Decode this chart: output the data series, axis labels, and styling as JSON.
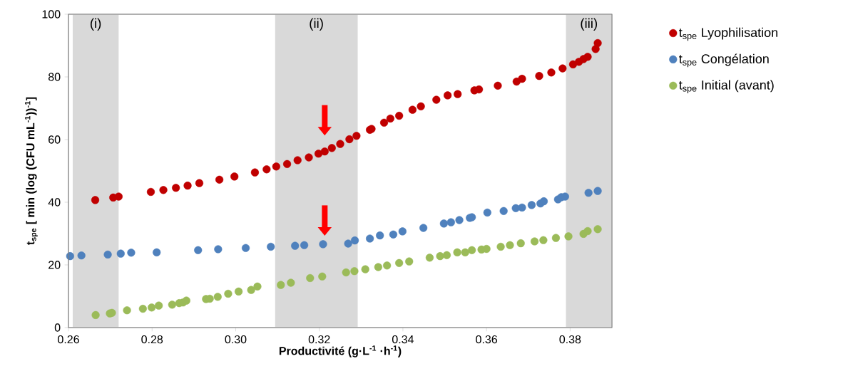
{
  "chart_data": {
    "type": "scatter",
    "xlabel": "Productivité (g·L$^{-1}$ ·h$^{-1}$)",
    "ylabel": "t$_{spe}$ [ min (log (CFU mL$^{-1}$))$^{-1}$]",
    "xlim": [
      0.26,
      0.39
    ],
    "ylim": [
      0,
      100
    ],
    "xticks": [
      {
        "value": 0.26,
        "label": "0.26"
      },
      {
        "value": 0.28,
        "label": "0.28"
      },
      {
        "value": 0.3,
        "label": "0.30"
      },
      {
        "value": 0.32,
        "label": "0.32"
      },
      {
        "value": 0.34,
        "label": "0.34"
      },
      {
        "value": 0.36,
        "label": "0.36"
      },
      {
        "value": 0.38,
        "label": "0.38"
      }
    ],
    "yticks": [
      0,
      20,
      40,
      60,
      80,
      100
    ],
    "grid": false,
    "legend": "right",
    "bands": [
      {
        "axis": "x",
        "from": 0.261,
        "to": 0.272,
        "label": "(i)",
        "color": "#d9d9d9"
      },
      {
        "axis": "x",
        "from": 0.3094,
        "to": 0.3292,
        "label": "(ii)",
        "color": "#d9d9d9"
      },
      {
        "axis": "x",
        "from": 0.379,
        "to": 0.39,
        "label": "(iii)",
        "color": "#d9d9d9"
      }
    ],
    "series": [
      {
        "name": "t$_{spe}$ Lyophilisation",
        "color": "#c00000",
        "x": [
          0.2664,
          0.2707,
          0.272,
          0.2797,
          0.2827,
          0.2857,
          0.2885,
          0.2913,
          0.2961,
          0.2997,
          0.3046,
          0.3074,
          0.3097,
          0.3123,
          0.3148,
          0.3175,
          0.3198,
          0.3213,
          0.323,
          0.325,
          0.3272,
          0.3289,
          0.3321,
          0.3325,
          0.3355,
          0.337,
          0.3391,
          0.3423,
          0.3443,
          0.348,
          0.3507,
          0.3531,
          0.3571,
          0.3582,
          0.3627,
          0.3672,
          0.3685,
          0.3726,
          0.3755,
          0.3782,
          0.3807,
          0.3821,
          0.3832,
          0.3842,
          0.3861,
          0.3866
        ],
        "values": [
          40.7,
          41.5,
          41.8,
          43.3,
          43.9,
          44.6,
          45.3,
          46.1,
          47.2,
          48.2,
          49.5,
          50.5,
          51.4,
          52.2,
          53.4,
          54.3,
          55.5,
          56.2,
          57.3,
          58.6,
          60.1,
          61.2,
          63.1,
          63.4,
          65.4,
          66.7,
          67.6,
          69.5,
          70.6,
          72.7,
          74.1,
          74.5,
          75.7,
          76.0,
          77.2,
          78.5,
          79.4,
          80.3,
          81.4,
          82.7,
          84.0,
          84.8,
          85.7,
          86.4,
          88.9,
          90.8
        ]
      },
      {
        "name": "t$_{spe}$ Congélation",
        "color": "#4f81bd",
        "x": [
          0.2604,
          0.2631,
          0.2694,
          0.2725,
          0.275,
          0.2811,
          0.291,
          0.2958,
          0.3024,
          0.3084,
          0.3142,
          0.3164,
          0.3209,
          0.3269,
          0.3285,
          0.3321,
          0.3345,
          0.3377,
          0.3399,
          0.3449,
          0.3498,
          0.3515,
          0.3535,
          0.356,
          0.3565,
          0.3602,
          0.3641,
          0.367,
          0.3685,
          0.3708,
          0.3729,
          0.3737,
          0.3771,
          0.3779,
          0.3788,
          0.3844,
          0.3866
        ],
        "values": [
          22.8,
          23.0,
          23.3,
          23.6,
          23.9,
          24.0,
          24.7,
          25.0,
          25.4,
          25.8,
          26.1,
          26.3,
          26.6,
          26.8,
          27.8,
          28.4,
          29.4,
          29.7,
          30.7,
          31.8,
          33.2,
          33.6,
          34.3,
          35.0,
          35.2,
          36.7,
          37.2,
          38.1,
          38.3,
          39.1,
          39.6,
          40.3,
          40.9,
          41.6,
          41.8,
          43.0,
          43.6
        ]
      },
      {
        "name": "t$_{spe}$ Initial (avant)",
        "color": "#9bbb59",
        "x": [
          0.2665,
          0.2699,
          0.2704,
          0.274,
          0.2778,
          0.2799,
          0.2816,
          0.2848,
          0.2865,
          0.2874,
          0.2882,
          0.2929,
          0.2938,
          0.2957,
          0.2982,
          0.3007,
          0.3037,
          0.3052,
          0.3108,
          0.3132,
          0.3178,
          0.3207,
          0.3264,
          0.3284,
          0.331,
          0.3341,
          0.3362,
          0.3391,
          0.3415,
          0.3464,
          0.3489,
          0.3505,
          0.353,
          0.3549,
          0.3565,
          0.3588,
          0.36,
          0.3634,
          0.3656,
          0.3682,
          0.3715,
          0.3736,
          0.3766,
          0.3796,
          0.3832,
          0.3842,
          0.3866
        ],
        "values": [
          4.0,
          4.5,
          4.7,
          5.5,
          6.0,
          6.4,
          7.0,
          7.3,
          7.8,
          8.0,
          8.6,
          9.1,
          9.2,
          9.8,
          10.8,
          11.5,
          12.0,
          13.1,
          13.6,
          14.3,
          15.8,
          16.3,
          17.6,
          18.0,
          18.6,
          19.3,
          19.8,
          20.6,
          21.1,
          22.3,
          22.8,
          23.1,
          24.0,
          24.0,
          24.7,
          24.9,
          25.1,
          25.8,
          26.3,
          26.9,
          27.5,
          27.9,
          28.6,
          29.1,
          29.9,
          30.8,
          31.4
        ]
      }
    ]
  }
}
